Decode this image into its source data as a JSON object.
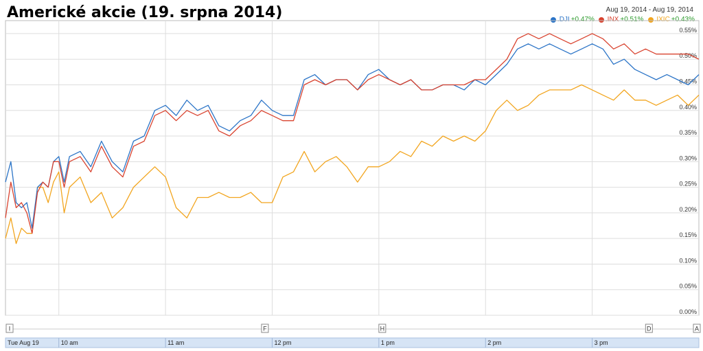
{
  "title": "Americké akcie (19. srpna 2014)",
  "date_range": "Aug 19, 2014  -  Aug 19, 2014",
  "legend": [
    {
      "name": ".DJI",
      "change": "+0.47%",
      "color": "#2b74c7"
    },
    {
      "name": ".INX",
      "change": "+0.51%",
      "color": "#d9432f"
    },
    {
      "name": ".IXIC",
      "change": "+0.43%",
      "color": "#f2a51e"
    }
  ],
  "colors": {
    "grid": "#dddddd",
    "timebar": "#d6e4f5",
    "border": "#bbbbbb"
  },
  "chart_data": {
    "type": "line",
    "title": "Americké akcie (19. srpna 2014)",
    "xlabel": "",
    "ylabel": "",
    "x_ticks": [
      "Tue Aug 19",
      "10 am",
      "11 am",
      "12 pm",
      "1 pm",
      "2 pm",
      "3 pm"
    ],
    "x_ticks_hours": [
      9.5,
      10,
      11,
      12,
      13,
      14,
      15
    ],
    "x_range": [
      9.5,
      16
    ],
    "y_ticks": [
      "0.00%",
      "0.05%",
      "0.10%",
      "0.15%",
      "0.20%",
      "0.25%",
      "0.30%",
      "0.35%",
      "0.40%",
      "0.45%",
      "0.50%",
      "0.55%"
    ],
    "ylim": [
      0,
      0.57
    ],
    "grid": true,
    "legend_position": "top-right",
    "flags": [
      {
        "label": "I",
        "x": 9.5
      },
      {
        "label": "F",
        "x": 11.9
      },
      {
        "label": "H",
        "x": 13.0
      },
      {
        "label": "D",
        "x": 15.5
      },
      {
        "label": "A",
        "x": 16.0
      }
    ],
    "series": [
      {
        "name": ".DJI",
        "x": [
          9.5,
          9.55,
          9.6,
          9.65,
          9.7,
          9.75,
          9.8,
          9.85,
          9.9,
          9.95,
          10.0,
          10.05,
          10.1,
          10.2,
          10.3,
          10.4,
          10.5,
          10.6,
          10.7,
          10.8,
          10.9,
          11.0,
          11.1,
          11.2,
          11.3,
          11.4,
          11.5,
          11.6,
          11.7,
          11.8,
          11.9,
          12.0,
          12.1,
          12.2,
          12.3,
          12.4,
          12.5,
          12.6,
          12.7,
          12.8,
          12.9,
          13.0,
          13.1,
          13.2,
          13.3,
          13.4,
          13.5,
          13.6,
          13.7,
          13.8,
          13.9,
          14.0,
          14.1,
          14.2,
          14.3,
          14.4,
          14.5,
          14.6,
          14.7,
          14.8,
          14.9,
          15.0,
          15.1,
          15.2,
          15.3,
          15.4,
          15.5,
          15.6,
          15.7,
          15.8,
          15.9,
          16.0
        ],
        "y": [
          0.26,
          0.3,
          0.22,
          0.21,
          0.22,
          0.17,
          0.25,
          0.26,
          0.25,
          0.3,
          0.31,
          0.26,
          0.31,
          0.32,
          0.29,
          0.34,
          0.3,
          0.28,
          0.34,
          0.35,
          0.4,
          0.41,
          0.39,
          0.42,
          0.4,
          0.41,
          0.37,
          0.36,
          0.38,
          0.39,
          0.42,
          0.4,
          0.39,
          0.39,
          0.46,
          0.47,
          0.45,
          0.46,
          0.46,
          0.44,
          0.47,
          0.48,
          0.46,
          0.45,
          0.46,
          0.44,
          0.44,
          0.45,
          0.45,
          0.44,
          0.46,
          0.45,
          0.47,
          0.49,
          0.52,
          0.53,
          0.52,
          0.53,
          0.52,
          0.51,
          0.52,
          0.53,
          0.52,
          0.49,
          0.5,
          0.48,
          0.47,
          0.46,
          0.47,
          0.46,
          0.45,
          0.47
        ]
      },
      {
        "name": ".INX",
        "x": [
          9.5,
          9.55,
          9.6,
          9.65,
          9.7,
          9.75,
          9.8,
          9.85,
          9.9,
          9.95,
          10.0,
          10.05,
          10.1,
          10.2,
          10.3,
          10.4,
          10.5,
          10.6,
          10.7,
          10.8,
          10.9,
          11.0,
          11.1,
          11.2,
          11.3,
          11.4,
          11.5,
          11.6,
          11.7,
          11.8,
          11.9,
          12.0,
          12.1,
          12.2,
          12.3,
          12.4,
          12.5,
          12.6,
          12.7,
          12.8,
          12.9,
          13.0,
          13.1,
          13.2,
          13.3,
          13.4,
          13.5,
          13.6,
          13.7,
          13.8,
          13.9,
          14.0,
          14.1,
          14.2,
          14.3,
          14.4,
          14.5,
          14.6,
          14.7,
          14.8,
          14.9,
          15.0,
          15.1,
          15.2,
          15.3,
          15.4,
          15.5,
          15.6,
          15.7,
          15.8,
          15.9,
          16.0
        ],
        "y": [
          0.19,
          0.26,
          0.21,
          0.22,
          0.2,
          0.16,
          0.24,
          0.26,
          0.25,
          0.3,
          0.3,
          0.25,
          0.3,
          0.31,
          0.28,
          0.33,
          0.29,
          0.27,
          0.33,
          0.34,
          0.39,
          0.4,
          0.38,
          0.4,
          0.39,
          0.4,
          0.36,
          0.35,
          0.37,
          0.38,
          0.4,
          0.39,
          0.38,
          0.38,
          0.45,
          0.46,
          0.45,
          0.46,
          0.46,
          0.44,
          0.46,
          0.47,
          0.46,
          0.45,
          0.46,
          0.44,
          0.44,
          0.45,
          0.45,
          0.45,
          0.46,
          0.46,
          0.48,
          0.5,
          0.54,
          0.55,
          0.54,
          0.55,
          0.54,
          0.53,
          0.54,
          0.55,
          0.54,
          0.52,
          0.53,
          0.51,
          0.52,
          0.51,
          0.51,
          0.51,
          0.51,
          0.5
        ]
      },
      {
        "name": ".IXIC",
        "x": [
          9.5,
          9.55,
          9.6,
          9.65,
          9.7,
          9.75,
          9.8,
          9.85,
          9.9,
          9.95,
          10.0,
          10.05,
          10.1,
          10.2,
          10.3,
          10.4,
          10.5,
          10.6,
          10.7,
          10.8,
          10.9,
          11.0,
          11.1,
          11.2,
          11.3,
          11.4,
          11.5,
          11.6,
          11.7,
          11.8,
          11.9,
          12.0,
          12.1,
          12.2,
          12.3,
          12.4,
          12.5,
          12.6,
          12.7,
          12.8,
          12.9,
          13.0,
          13.1,
          13.2,
          13.3,
          13.4,
          13.5,
          13.6,
          13.7,
          13.8,
          13.9,
          14.0,
          14.1,
          14.2,
          14.3,
          14.4,
          14.5,
          14.6,
          14.7,
          14.8,
          14.9,
          15.0,
          15.1,
          15.2,
          15.3,
          15.4,
          15.5,
          15.6,
          15.7,
          15.8,
          15.9,
          16.0
        ],
        "y": [
          0.15,
          0.19,
          0.14,
          0.17,
          0.16,
          0.16,
          0.25,
          0.25,
          0.22,
          0.26,
          0.28,
          0.2,
          0.25,
          0.27,
          0.22,
          0.24,
          0.19,
          0.21,
          0.25,
          0.27,
          0.29,
          0.27,
          0.21,
          0.19,
          0.23,
          0.23,
          0.24,
          0.23,
          0.23,
          0.24,
          0.22,
          0.22,
          0.27,
          0.28,
          0.32,
          0.28,
          0.3,
          0.31,
          0.29,
          0.26,
          0.29,
          0.29,
          0.3,
          0.32,
          0.31,
          0.34,
          0.33,
          0.35,
          0.34,
          0.35,
          0.34,
          0.36,
          0.4,
          0.42,
          0.4,
          0.41,
          0.43,
          0.44,
          0.44,
          0.44,
          0.45,
          0.44,
          0.43,
          0.42,
          0.44,
          0.42,
          0.42,
          0.41,
          0.42,
          0.43,
          0.41,
          0.43
        ]
      }
    ]
  }
}
